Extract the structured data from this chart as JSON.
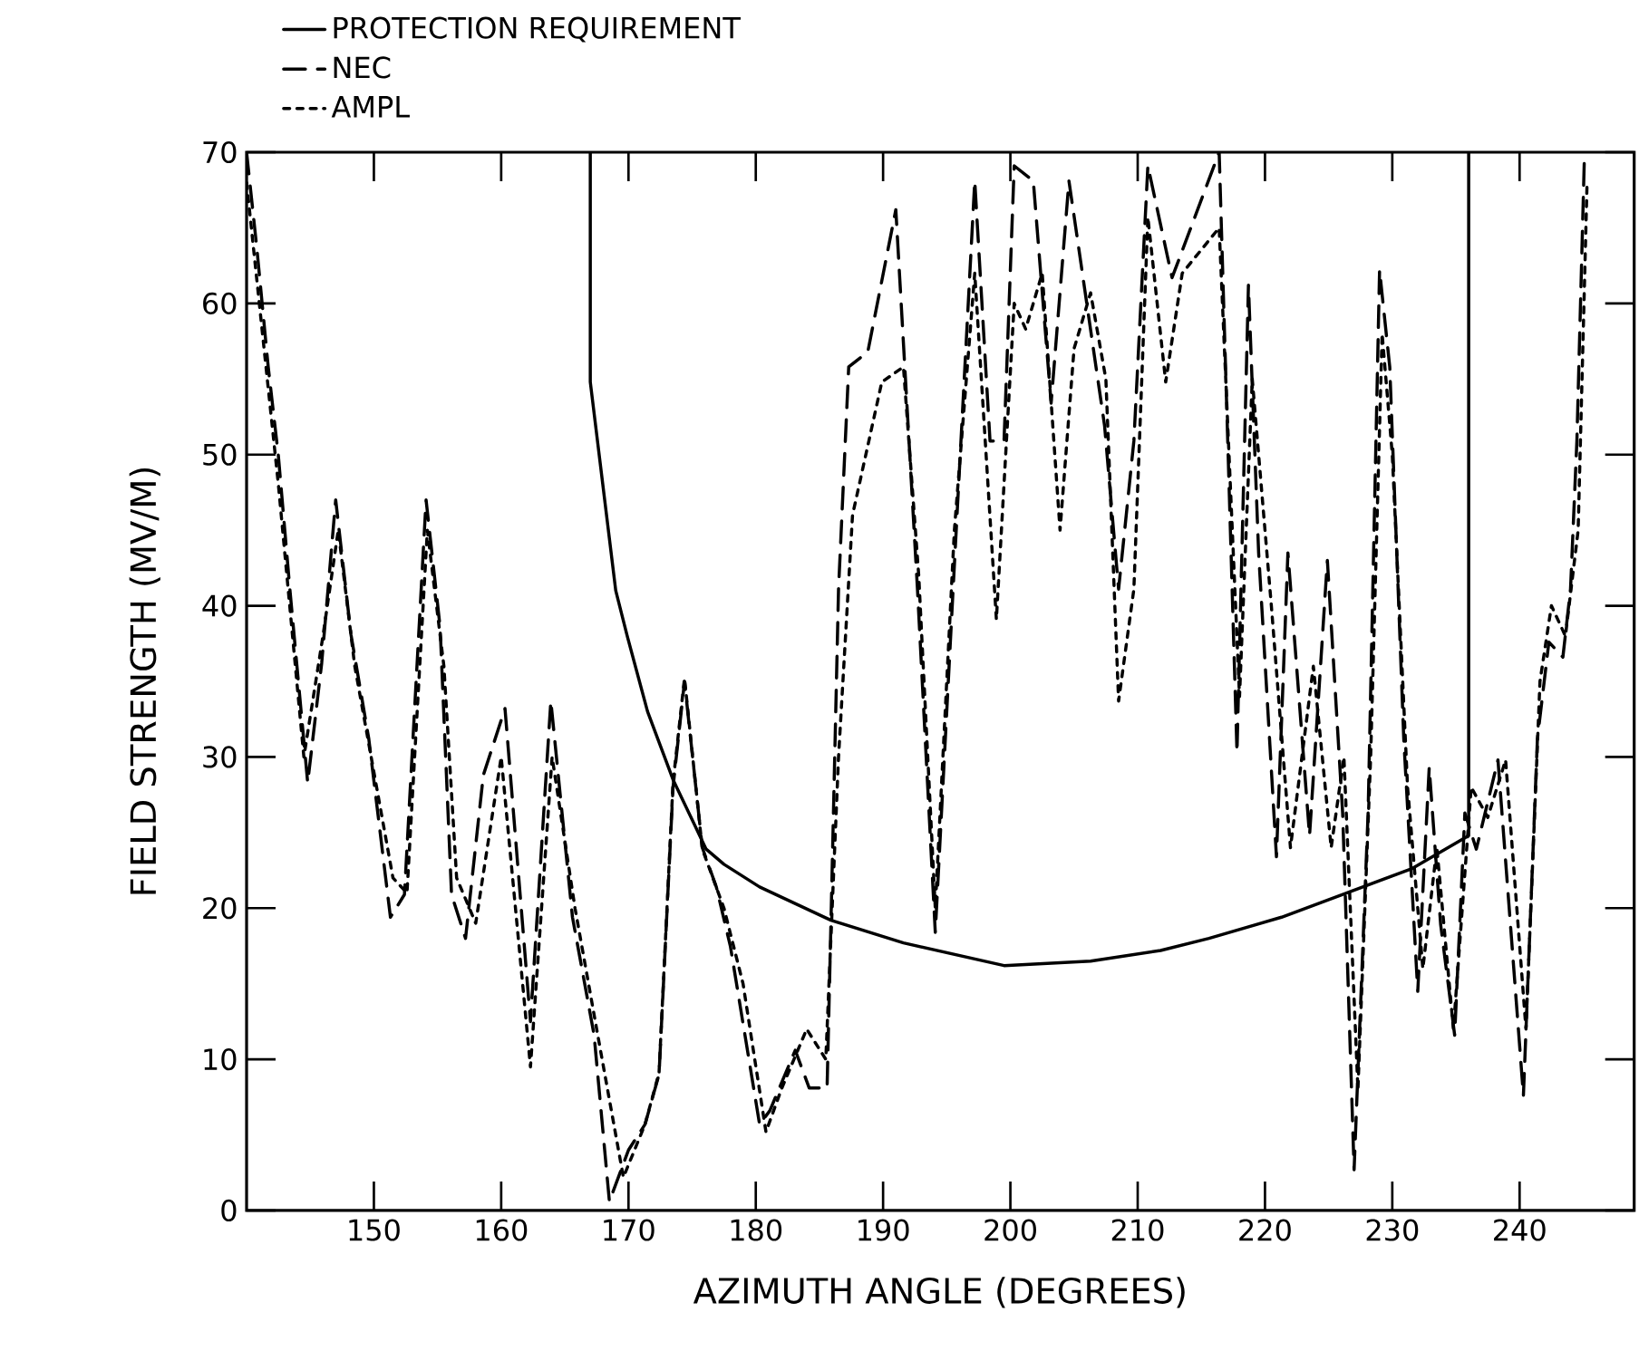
{
  "chart_data": {
    "type": "line",
    "xlabel": "AZIMUTH ANGLE (DEGREES)",
    "ylabel": "FIELD STRENGTH (MV/M)",
    "xlim": [
      140,
      249
    ],
    "ylim": [
      0,
      70
    ],
    "xticks": [
      150,
      160,
      170,
      180,
      190,
      200,
      210,
      220,
      230,
      240
    ],
    "yticks": [
      0,
      10,
      20,
      30,
      40,
      50,
      60,
      70
    ],
    "legend": "top left",
    "grid": false,
    "marker": "none",
    "series": [
      {
        "name": "PROTECTION REQUIREMENT",
        "color": "#000000",
        "line_style": "solid",
        "x": [
          167,
          167,
          169,
          169.9,
          171.5,
          173.5,
          176.1,
          177.5,
          180.3,
          185.9,
          191.6,
          199.5,
          206.3,
          211.8,
          215.6,
          221.3,
          226.4,
          231.5,
          236,
          236
        ],
        "values": [
          70,
          54.8,
          41,
          38,
          33,
          28.5,
          23.9,
          22.9,
          21.4,
          19.2,
          17.7,
          16.2,
          16.5,
          17.2,
          18,
          19.4,
          21,
          22.6,
          24.8,
          70
        ]
      },
      {
        "name": "NEC",
        "color": "#000000",
        "line_style": "dashed",
        "x": [
          140,
          140.8,
          141.7,
          142.5,
          143.4,
          144.8,
          145.9,
          147,
          148.2,
          149.6,
          151.3,
          152.4,
          154.1,
          155.2,
          156.1,
          157.2,
          158.6,
          160.3,
          162.3,
          163.9,
          165.6,
          167.3,
          168.5,
          170,
          171.3,
          172.4,
          173.5,
          174.4,
          175.8,
          176.9,
          178,
          180.3,
          181.1,
          183.1,
          184.2,
          185.6,
          185.9,
          186.5,
          187.3,
          188.8,
          191,
          192.7,
          194.1,
          195.5,
          197.2,
          198.4,
          199.5,
          200.3,
          201.8,
          203.2,
          204.6,
          207.4,
          208.5,
          209.7,
          210.8,
          212.7,
          216.4,
          217.8,
          218.7,
          219.5,
          220.9,
          221.8,
          223.5,
          224.9,
          226.1,
          227,
          228.1,
          229,
          229.8,
          230.9,
          232,
          232.9,
          233.8,
          234.9,
          235.7,
          236.6,
          238.3,
          240.3,
          241.4,
          242.3,
          243.4,
          244,
          244.5,
          245.1
        ],
        "values": [
          70,
          63.7,
          55.8,
          49.9,
          41.1,
          28.3,
          36.2,
          47,
          38.1,
          31.2,
          19.4,
          20.9,
          47,
          38.6,
          20.9,
          18,
          28.8,
          33.2,
          12.5,
          33.7,
          19.4,
          11.6,
          0.6,
          4,
          5.7,
          9,
          28,
          35,
          24,
          21.4,
          17.5,
          5.7,
          6.6,
          10.6,
          8.1,
          8.1,
          18.9,
          41.1,
          55.8,
          56.8,
          66.2,
          41.1,
          18.4,
          41.1,
          68.1,
          50.9,
          50.9,
          69.1,
          68.1,
          53.4,
          68.1,
          51.9,
          41.1,
          50.9,
          69.1,
          61.7,
          70,
          30.3,
          61.2,
          43.5,
          23.4,
          43.5,
          24.8,
          43,
          26.3,
          2.7,
          26.3,
          62.2,
          55.8,
          31.2,
          14.5,
          29.3,
          18.9,
          11.6,
          26.3,
          23.9,
          29.8,
          7.6,
          31.2,
          37.6,
          36.6,
          41.1,
          50.9,
          70
        ]
      },
      {
        "name": "AMPL",
        "color": "#000000",
        "line_style": "dotted",
        "x": [
          140,
          141,
          142.5,
          144.5,
          146,
          147.2,
          148.5,
          150,
          151.5,
          152.6,
          154.2,
          155.5,
          156.5,
          158,
          160,
          162.3,
          164,
          165.8,
          167.5,
          169.6,
          171.3,
          172.4,
          173.5,
          174.4,
          175.8,
          177.5,
          179,
          180.8,
          182,
          184,
          185.5,
          186.5,
          187.6,
          189.9,
          191.6,
          192.8,
          194.1,
          195.6,
          197.2,
          198.9,
          200.3,
          201.2,
          202.5,
          203.9,
          205,
          206.3,
          207.5,
          208.5,
          209.7,
          210.8,
          212.2,
          213.5,
          216.4,
          218,
          219,
          220.5,
          222,
          223.8,
          225.2,
          226.2,
          227.3,
          228.3,
          229.2,
          230,
          231.2,
          232.4,
          233.5,
          234.8,
          236.2,
          237.5,
          238.9,
          240.5,
          241.6,
          242.5,
          243.6,
          244.6,
          245.3
        ],
        "values": [
          68,
          60,
          48,
          30,
          38,
          45,
          36,
          29,
          22,
          21,
          45,
          36,
          22,
          19,
          30,
          9.5,
          30,
          20,
          12,
          2.2,
          5.7,
          9.1,
          28.3,
          35.2,
          23.9,
          20,
          15,
          5.2,
          8,
          12,
          10,
          30,
          46,
          54.8,
          55.8,
          42,
          20,
          45,
          62,
          39.1,
          60,
          58.3,
          62,
          45,
          57,
          60.7,
          55,
          33.7,
          41.1,
          65.7,
          54.8,
          62,
          65,
          34,
          55,
          40,
          24,
          36,
          24,
          30,
          8,
          30,
          58,
          50,
          28,
          16,
          24,
          12,
          28,
          26,
          29.8,
          12,
          35,
          40,
          38,
          45,
          68
        ]
      }
    ]
  }
}
